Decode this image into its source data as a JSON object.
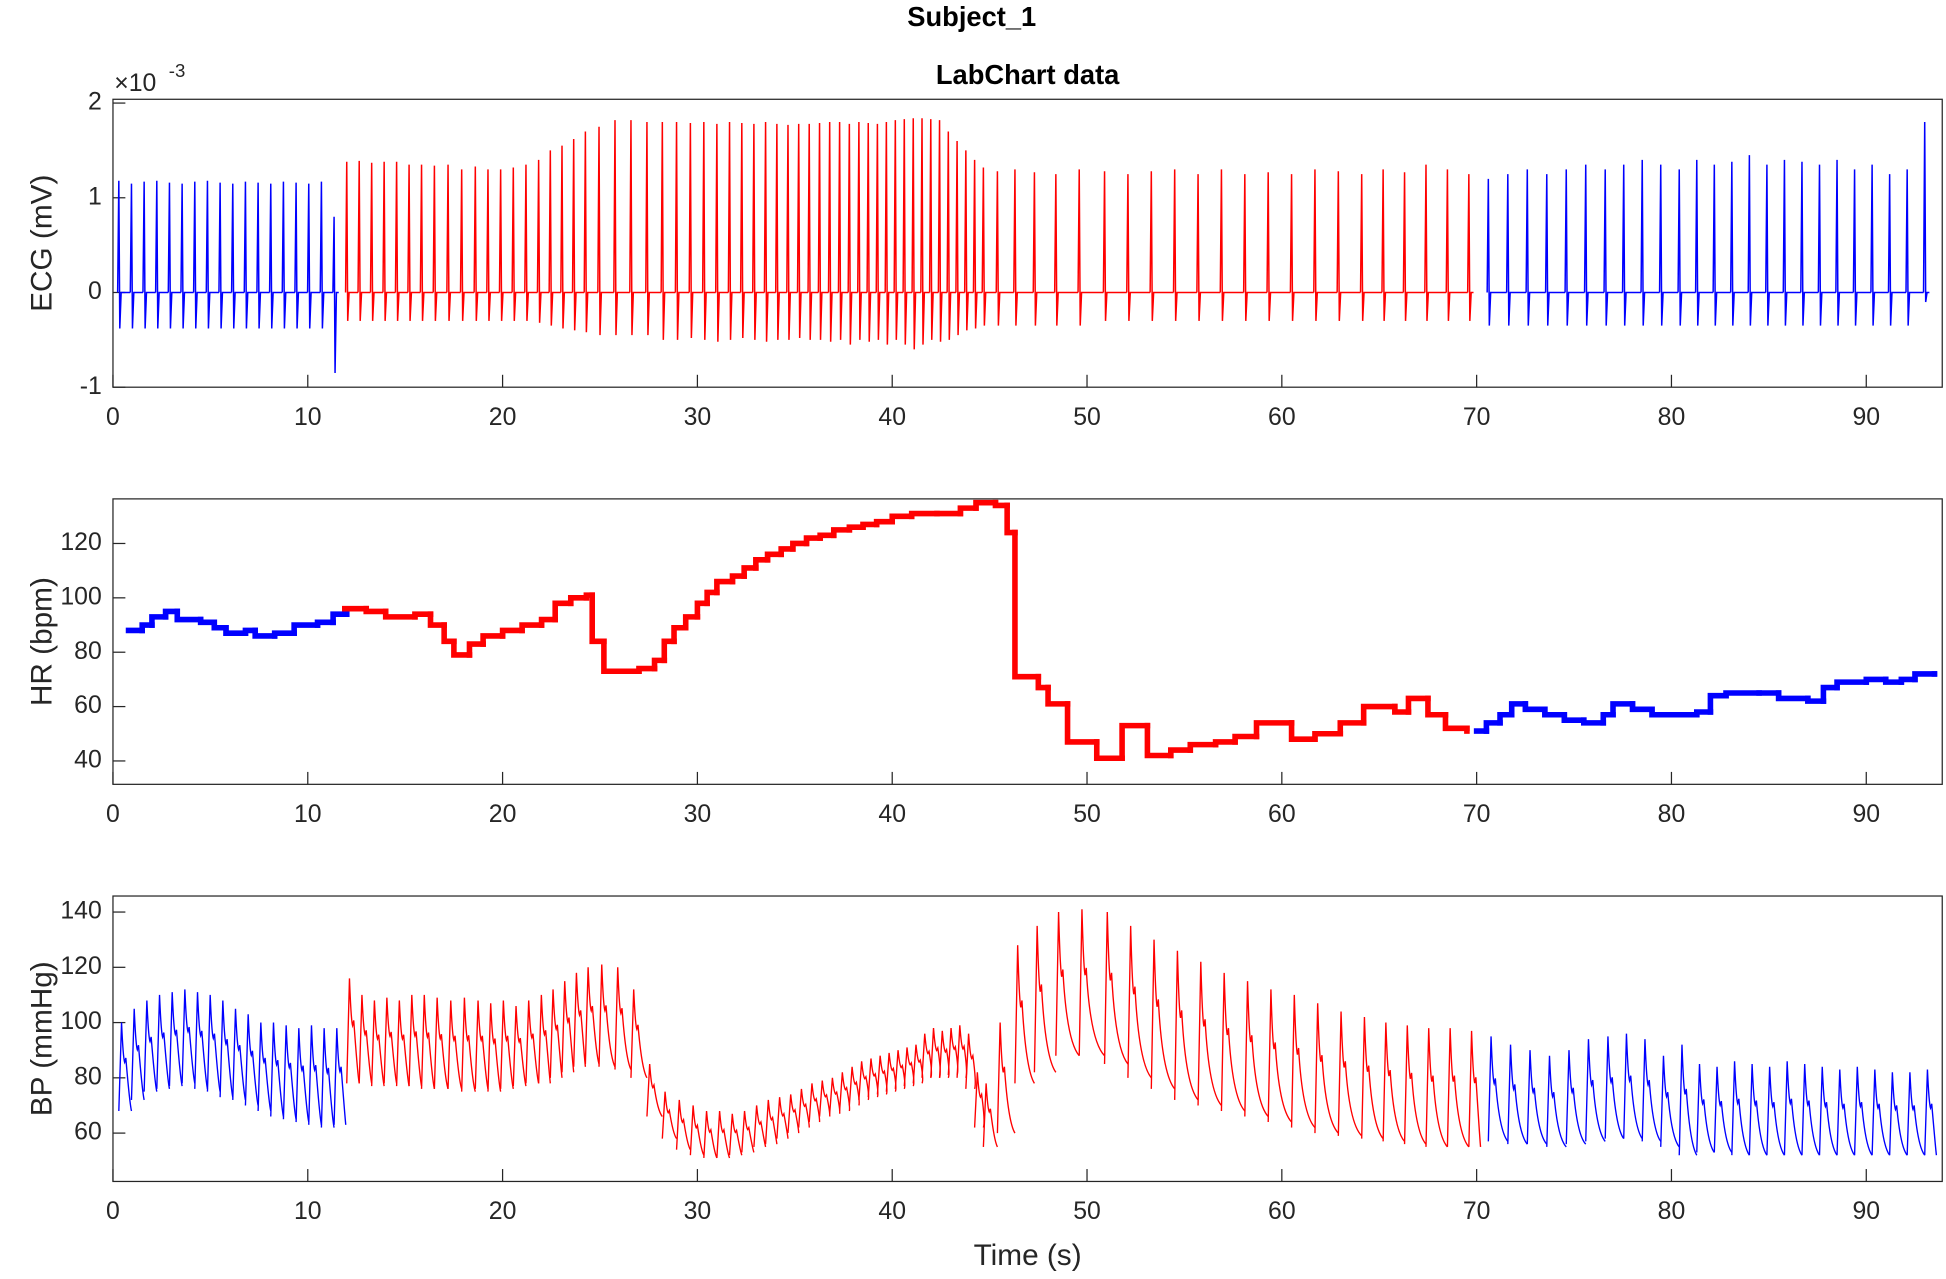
{
  "chart_data": [
    {
      "type": "spikes",
      "title": "Subject_1",
      "subtitle": "LabChart data",
      "ylabel": "ECG (mV)",
      "y_exponent_base": "×10",
      "y_exponent": "-3",
      "xlim": [
        0,
        93.9
      ],
      "ylim": [
        -0.001,
        0.00204
      ],
      "xticks": [
        0,
        10,
        20,
        30,
        40,
        50,
        60,
        70,
        80,
        90
      ],
      "yticks": [
        {
          "value": -0.001,
          "label": "-1"
        },
        0,
        {
          "value": 0.001,
          "label": "1"
        },
        {
          "value": 0.002,
          "label": "2"
        }
      ],
      "series": [
        {
          "color": "#0000ff",
          "x": [
            0.3,
            0.95,
            1.6,
            2.25,
            2.9,
            3.55,
            4.2,
            4.85,
            5.5,
            6.15,
            6.8,
            7.45,
            8.1,
            8.75,
            9.4,
            10.05,
            10.7,
            11.35
          ],
          "peaks": [
            0.00118,
            0.00115,
            0.00117,
            0.00118,
            0.00116,
            0.00115,
            0.00117,
            0.00118,
            0.00116,
            0.00115,
            0.00117,
            0.00116,
            0.00115,
            0.00117,
            0.00116,
            0.00115,
            0.00117,
            0.0008
          ],
          "troughs": [
            -0.00038,
            -0.00038,
            -0.00038,
            -0.00038,
            -0.00038,
            -0.00038,
            -0.00038,
            -0.00038,
            -0.00038,
            -0.00038,
            -0.00038,
            -0.00038,
            -0.00038,
            -0.00038,
            -0.00038,
            -0.00038,
            -0.00038,
            -0.00085
          ]
        },
        {
          "color": "#ff0000",
          "x": [
            12.0,
            12.64,
            13.28,
            13.92,
            14.56,
            15.2,
            15.84,
            16.5,
            17.2,
            17.9,
            18.6,
            19.25,
            19.9,
            20.55,
            21.2,
            21.85,
            22.45,
            23.05,
            23.65,
            24.25,
            24.95,
            25.77,
            26.59,
            27.41,
            28.2,
            28.93,
            29.64,
            30.33,
            31.0,
            31.65,
            32.28,
            32.9,
            33.5,
            34.08,
            34.65,
            35.2,
            35.74,
            36.27,
            36.79,
            37.3,
            37.8,
            38.29,
            38.77,
            39.24,
            39.7,
            40.16,
            40.62,
            41.08,
            41.53,
            41.98,
            42.43,
            42.88,
            43.33,
            43.78,
            44.23,
            44.68,
            45.4,
            46.3,
            47.3,
            48.4,
            49.6,
            50.9,
            52.1,
            53.3,
            54.5,
            55.7,
            56.9,
            58.1,
            59.3,
            60.5,
            61.7,
            62.9,
            64.1,
            65.2,
            66.3,
            67.4,
            68.5,
            69.6
          ],
          "peaks": [
            0.00138,
            0.00139,
            0.00137,
            0.00138,
            0.00138,
            0.00135,
            0.00135,
            0.00134,
            0.00135,
            0.0013,
            0.00133,
            0.0013,
            0.0013,
            0.00132,
            0.00135,
            0.0014,
            0.0015,
            0.00155,
            0.00162,
            0.0017,
            0.00175,
            0.00182,
            0.00182,
            0.0018,
            0.0018,
            0.0018,
            0.00179,
            0.0018,
            0.00178,
            0.0018,
            0.00179,
            0.00178,
            0.0018,
            0.00178,
            0.00177,
            0.00178,
            0.00178,
            0.00179,
            0.0018,
            0.0018,
            0.00178,
            0.0018,
            0.00179,
            0.00178,
            0.0018,
            0.00182,
            0.00183,
            0.00184,
            0.00184,
            0.00183,
            0.00182,
            0.0017,
            0.0016,
            0.0015,
            0.0014,
            0.00132,
            0.00128,
            0.0013,
            0.00127,
            0.00125,
            0.0013,
            0.00128,
            0.00125,
            0.00128,
            0.0013,
            0.00125,
            0.0013,
            0.00125,
            0.00127,
            0.00125,
            0.0013,
            0.00128,
            0.00125,
            0.0013,
            0.00127,
            0.00135,
            0.0013,
            0.00125
          ],
          "troughs": [
            -0.0003,
            -0.0003,
            -0.0003,
            -0.0003,
            -0.0003,
            -0.0003,
            -0.0003,
            -0.0003,
            -0.0003,
            -0.0003,
            -0.0003,
            -0.0003,
            -0.0003,
            -0.0003,
            -0.0003,
            -0.00032,
            -0.00035,
            -0.00038,
            -0.0004,
            -0.00042,
            -0.00045,
            -0.00045,
            -0.00045,
            -0.00045,
            -0.0005,
            -0.0005,
            -0.00048,
            -0.0005,
            -0.00052,
            -0.0005,
            -0.00048,
            -0.0005,
            -0.00052,
            -0.0005,
            -0.0005,
            -0.00048,
            -0.0005,
            -0.0005,
            -0.00052,
            -0.0005,
            -0.00055,
            -0.0005,
            -0.00052,
            -0.0005,
            -0.00055,
            -0.0005,
            -0.00055,
            -0.0006,
            -0.00055,
            -0.0005,
            -0.00052,
            -0.0005,
            -0.00045,
            -0.0004,
            -0.00038,
            -0.00035,
            -0.00035,
            -0.00035,
            -0.00035,
            -0.00035,
            -0.00035,
            -0.0003,
            -0.0003,
            -0.0003,
            -0.0003,
            -0.0003,
            -0.0003,
            -0.0003,
            -0.0003,
            -0.0003,
            -0.0003,
            -0.0003,
            -0.0003,
            -0.0003,
            -0.0003,
            -0.0003,
            -0.0003,
            -0.0003
          ]
        },
        {
          "color": "#0000ff",
          "x": [
            70.6,
            71.6,
            72.6,
            73.6,
            74.6,
            75.6,
            76.6,
            77.55,
            78.5,
            79.45,
            80.4,
            81.3,
            82.2,
            83.1,
            84.0,
            84.9,
            85.8,
            86.7,
            87.6,
            88.5,
            89.4,
            90.3,
            91.2,
            92.1,
            93.0
          ],
          "peaks": [
            0.0012,
            0.00125,
            0.0013,
            0.00125,
            0.0013,
            0.00135,
            0.0013,
            0.00135,
            0.0014,
            0.00135,
            0.0013,
            0.0014,
            0.00135,
            0.00138,
            0.00145,
            0.00135,
            0.0014,
            0.00138,
            0.00135,
            0.0014,
            0.0013,
            0.00135,
            0.00125,
            0.0013,
            0.0018
          ],
          "troughs": [
            -0.00035,
            -0.00035,
            -0.00035,
            -0.00035,
            -0.00035,
            -0.00035,
            -0.00035,
            -0.00035,
            -0.00035,
            -0.00035,
            -0.00035,
            -0.00035,
            -0.00035,
            -0.00035,
            -0.00035,
            -0.00035,
            -0.00035,
            -0.00035,
            -0.00035,
            -0.00035,
            -0.00035,
            -0.00035,
            -0.00035,
            -0.00035,
            -0.0001
          ]
        }
      ]
    },
    {
      "type": "step",
      "ylabel": "HR (bpm)",
      "xlim": [
        0,
        93.9
      ],
      "ylim": [
        31.4,
        136.4
      ],
      "xticks": [
        0,
        10,
        20,
        30,
        40,
        50,
        60,
        70,
        80,
        90
      ],
      "yticks": [
        40,
        60,
        80,
        100,
        120
      ],
      "series": [
        {
          "color": "#0000ff",
          "x": [
            0.8,
            1.5,
            2,
            2.7,
            3.3,
            4.5,
            5.2,
            5.8,
            6.8,
            7.3,
            8.3,
            9.3,
            10.5,
            11.3,
            12
          ],
          "values": [
            88,
            90,
            93,
            95,
            92,
            91,
            89,
            87,
            88,
            86,
            87,
            90,
            91,
            94,
            95
          ]
        },
        {
          "color": "#ff0000",
          "x": [
            11.9,
            13,
            14,
            15.5,
            16.3,
            17,
            17.5,
            18.3,
            19,
            20,
            21,
            22,
            22.7,
            23.5,
            24.3,
            24.6,
            25.2,
            27,
            27.8,
            28.3,
            28.8,
            29.4,
            30,
            30.5,
            31,
            31.8,
            32.4,
            33,
            33.6,
            34.3,
            34.9,
            35.6,
            36.3,
            37,
            37.8,
            38.5,
            39.2,
            40,
            41,
            42.3,
            43.5,
            44.3,
            45.3,
            45.9,
            46.3,
            47.5,
            48,
            49,
            50.5,
            51.8,
            53.1,
            54.3,
            55.3,
            56.6,
            57.6,
            58.7,
            60.5,
            61.7,
            63,
            64.2,
            65.8,
            66.5,
            67.5,
            68.4,
            69.5
          ],
          "values": [
            96,
            95,
            93,
            94,
            90,
            84,
            79,
            83,
            86,
            88,
            90,
            92,
            98,
            100,
            101,
            84,
            73,
            74,
            77,
            84,
            89,
            93,
            98,
            102,
            106,
            108,
            111,
            114,
            116,
            118,
            120,
            122,
            123,
            125,
            126,
            127,
            128,
            130,
            131,
            131,
            133,
            135,
            134,
            124,
            71,
            67,
            61,
            47,
            41,
            53,
            42,
            44,
            46,
            47,
            49,
            54,
            48,
            50,
            54,
            60,
            58,
            63,
            57,
            52,
            51
          ]
        },
        {
          "color": "#0000ff",
          "x": [
            70,
            70.5,
            71.2,
            71.8,
            72.5,
            73.5,
            74.5,
            75.5,
            76.5,
            77,
            78,
            79,
            80,
            81.3,
            82,
            82.8,
            84.5,
            85.5,
            87,
            87.8,
            88.5,
            90,
            91,
            91.8,
            92.5,
            93.5
          ],
          "values": [
            51,
            54,
            57,
            61,
            59,
            57,
            55,
            54,
            57,
            61,
            59,
            57,
            57,
            58,
            64,
            65,
            65,
            63,
            62,
            67,
            69,
            70,
            69,
            70,
            72,
            72
          ]
        }
      ]
    },
    {
      "type": "pulse",
      "ylabel": "BP (mmHg)",
      "xlabel": "Time (s)",
      "xlim": [
        0,
        93.9
      ],
      "ylim": [
        42.5,
        145.8
      ],
      "xticks": [
        0,
        10,
        20,
        30,
        40,
        50,
        60,
        70,
        80,
        90
      ],
      "yticks": [
        60,
        80,
        100,
        120,
        140
      ],
      "series": [
        {
          "color": "#0000ff",
          "x": [
            0.3,
            0.95,
            1.6,
            2.25,
            2.9,
            3.55,
            4.2,
            4.85,
            5.5,
            6.15,
            6.8,
            7.45,
            8.1,
            8.75,
            9.4,
            10.05,
            10.7,
            11.35
          ],
          "systolic": [
            100,
            105,
            108,
            110,
            111,
            112,
            111,
            110,
            108,
            105,
            103,
            100,
            100,
            99,
            98,
            99,
            98,
            98
          ],
          "diastolic": [
            68,
            72,
            75,
            76,
            77,
            78,
            76,
            75,
            73,
            72,
            70,
            68,
            66,
            65,
            64,
            63,
            62,
            63
          ]
        },
        {
          "color": "#ff0000",
          "x": [
            12.0,
            12.64,
            13.28,
            13.92,
            14.56,
            15.2,
            15.84,
            16.5,
            17.2,
            17.9,
            18.6,
            19.25,
            19.9,
            20.55,
            21.2,
            21.85,
            22.45,
            23.05,
            23.65,
            24.25,
            24.95,
            25.77,
            26.59,
            27.41,
            28.2,
            28.93,
            29.64,
            30.33,
            31.0,
            31.65,
            32.28,
            32.9,
            33.5,
            34.08,
            34.65,
            35.2,
            35.74,
            36.27,
            36.79,
            37.3,
            37.8,
            38.29,
            38.77,
            39.24,
            39.7,
            40.16,
            40.62,
            41.08,
            41.53,
            41.98,
            42.43,
            42.88,
            43.33,
            43.78,
            44.23,
            44.68,
            45.4,
            46.3,
            47.3,
            48.4,
            49.6,
            50.9,
            52.1,
            53.3,
            54.5,
            55.7,
            56.9,
            58.1,
            59.3,
            60.5,
            61.7,
            62.9,
            64.1,
            65.2,
            66.3,
            67.4,
            68.5,
            69.6
          ],
          "systolic": [
            116,
            110,
            108,
            109,
            108,
            110,
            110,
            109,
            108,
            109,
            108,
            107,
            108,
            106,
            108,
            110,
            112,
            115,
            118,
            120,
            121,
            120,
            112,
            85,
            75,
            72,
            70,
            68,
            68,
            67,
            68,
            70,
            72,
            73,
            74,
            76,
            78,
            79,
            80,
            82,
            84,
            86,
            87,
            88,
            89,
            90,
            91,
            92,
            96,
            98,
            97,
            98,
            99,
            96,
            82,
            78,
            100,
            128,
            135,
            140,
            141,
            140,
            135,
            130,
            126,
            122,
            118,
            115,
            112,
            110,
            107,
            104,
            102,
            100,
            99,
            98,
            98,
            97
          ],
          "diastolic": [
            78,
            78,
            77,
            78,
            77,
            77,
            76,
            76,
            76,
            75,
            76,
            75,
            76,
            77,
            78,
            78,
            80,
            82,
            84,
            85,
            84,
            83,
            80,
            66,
            58,
            54,
            52,
            51,
            51,
            52,
            53,
            55,
            56,
            58,
            60,
            62,
            64,
            66,
            67,
            68,
            70,
            72,
            73,
            74,
            75,
            76,
            77,
            78,
            80,
            80,
            80,
            81,
            80,
            76,
            62,
            55,
            60,
            78,
            82,
            88,
            88,
            85,
            80,
            76,
            72,
            70,
            68,
            66,
            64,
            62,
            60,
            59,
            58,
            57,
            56,
            55,
            55,
            55
          ]
        },
        {
          "color": "#0000ff",
          "x": [
            70.6,
            71.6,
            72.6,
            73.6,
            74.6,
            75.6,
            76.6,
            77.55,
            78.5,
            79.45,
            80.4,
            81.3,
            82.2,
            83.1,
            84.0,
            84.9,
            85.8,
            86.7,
            87.6,
            88.5,
            89.4,
            90.3,
            91.2,
            92.1,
            93.0
          ],
          "systolic": [
            95,
            92,
            90,
            88,
            90,
            94,
            95,
            96,
            94,
            88,
            92,
            85,
            84,
            86,
            85,
            84,
            86,
            85,
            84,
            83,
            84,
            83,
            82,
            82,
            83
          ],
          "diastolic": [
            57,
            56,
            56,
            55,
            56,
            57,
            58,
            58,
            57,
            55,
            52,
            53,
            53,
            52,
            52,
            52,
            52,
            52,
            52,
            52,
            52,
            52,
            52,
            52,
            52
          ]
        }
      ]
    }
  ]
}
